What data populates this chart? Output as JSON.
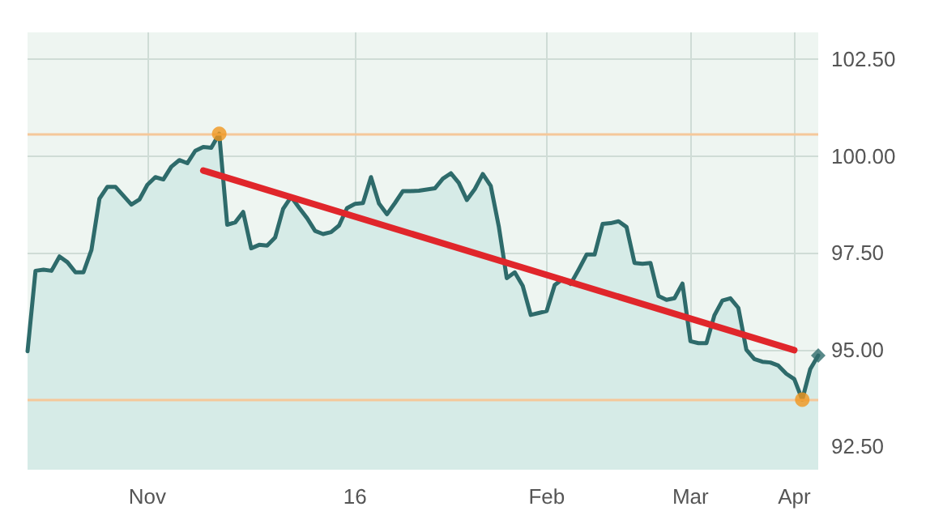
{
  "chart_data": {
    "type": "area",
    "ylim": [
      91.9,
      103.2
    ],
    "categories": [
      null,
      null,
      null,
      null,
      null,
      null,
      null,
      null,
      null,
      null,
      null,
      null,
      null,
      null,
      null,
      "Nov",
      null,
      null,
      null,
      null,
      null,
      null,
      null,
      null,
      null,
      null,
      null,
      null,
      null,
      null,
      null,
      null,
      null,
      null,
      null,
      null,
      null,
      null,
      null,
      null,
      null,
      "16",
      null,
      null,
      null,
      null,
      null,
      null,
      null,
      null,
      null,
      null,
      null,
      null,
      null,
      null,
      null,
      null,
      null,
      null,
      null,
      null,
      null,
      null,
      null,
      "Feb",
      null,
      null,
      null,
      null,
      null,
      null,
      null,
      null,
      null,
      null,
      null,
      null,
      null,
      null,
      null,
      null,
      null,
      "Mar",
      null,
      null,
      null,
      null,
      null,
      null,
      null,
      null,
      null,
      null,
      null,
      null,
      "Apr",
      null,
      null,
      null
    ],
    "yticks": [
      {
        "value": 92.5,
        "label": "92.50"
      },
      {
        "value": 95,
        "label": "95.00"
      },
      {
        "value": 97.5,
        "label": "97.50"
      },
      {
        "value": 100,
        "label": "100.00"
      },
      {
        "value": 102.5,
        "label": "102.50"
      }
    ],
    "grid": true,
    "marker": "none",
    "ref_lines": [
      {
        "axis": "y",
        "value": 100.58,
        "label": null,
        "color": "#f5c89a"
      },
      {
        "axis": "y",
        "value": 93.71,
        "label": null,
        "color": "#f5c89a"
      }
    ],
    "series": [
      {
        "color": "#2e6b6b",
        "values": [
          94.96,
          97.04,
          97.07,
          97.04,
          97.41,
          97.26,
          97.0,
          97.0,
          97.58,
          98.9,
          99.21,
          99.21,
          98.98,
          98.75,
          98.88,
          99.26,
          99.46,
          99.4,
          99.73,
          99.9,
          99.82,
          100.14,
          100.24,
          100.22,
          100.58,
          98.23,
          98.29,
          98.56,
          97.62,
          97.71,
          97.69,
          97.9,
          98.64,
          98.95,
          98.67,
          98.4,
          98.07,
          97.99,
          98.04,
          98.21,
          98.66,
          98.77,
          98.79,
          99.46,
          98.78,
          98.5,
          98.79,
          99.1,
          99.1,
          99.11,
          99.14,
          99.17,
          99.42,
          99.56,
          99.31,
          98.87,
          99.15,
          99.54,
          99.23,
          98.19,
          96.85,
          97.0,
          96.65,
          95.9,
          95.95,
          96.0,
          96.67,
          96.83,
          96.7,
          97.07,
          97.46,
          97.46,
          98.25,
          98.27,
          98.32,
          98.17,
          97.24,
          97.22,
          97.24,
          96.39,
          96.29,
          96.33,
          96.71,
          95.22,
          95.17,
          95.17,
          95.89,
          96.27,
          96.33,
          96.08,
          95.0,
          94.76,
          94.69,
          94.67,
          94.59,
          94.38,
          94.24,
          93.71,
          94.5,
          94.85
        ]
      },
      {
        "type": "line",
        "color": "#e0262b",
        "values": [
          null,
          null,
          null,
          null,
          null,
          null,
          null,
          null,
          null,
          null,
          null,
          null,
          null,
          null,
          null,
          null,
          null,
          null,
          null,
          null,
          null,
          null,
          99.63,
          null,
          null,
          null,
          null,
          null,
          null,
          null,
          null,
          null,
          null,
          null,
          null,
          null,
          null,
          null,
          null,
          null,
          null,
          null,
          null,
          null,
          null,
          null,
          null,
          null,
          null,
          null,
          null,
          null,
          null,
          null,
          null,
          null,
          null,
          null,
          null,
          null,
          null,
          null,
          null,
          null,
          null,
          null,
          null,
          null,
          null,
          null,
          null,
          null,
          null,
          null,
          null,
          null,
          null,
          null,
          null,
          null,
          null,
          null,
          null,
          null,
          null,
          null,
          null,
          null,
          null,
          null,
          null,
          null,
          null,
          null,
          null,
          null,
          94.99,
          null,
          null,
          null
        ]
      },
      {
        "type": "scatter",
        "color": "#f0961e",
        "marker": "circle",
        "values": [
          null,
          null,
          null,
          null,
          null,
          null,
          null,
          null,
          null,
          null,
          null,
          null,
          null,
          null,
          null,
          null,
          null,
          null,
          null,
          null,
          null,
          null,
          null,
          null,
          100.58,
          null,
          null,
          null,
          null,
          null,
          null,
          null,
          null,
          null,
          null,
          null,
          null,
          null,
          null,
          null,
          null,
          null,
          null,
          null,
          null,
          null,
          null,
          null,
          null,
          null,
          null,
          null,
          null,
          null,
          null,
          null,
          null,
          null,
          null,
          null,
          null,
          null,
          null,
          null,
          null,
          null,
          null,
          null,
          null,
          null,
          null,
          null,
          null,
          null,
          null,
          null,
          null,
          null,
          null,
          null,
          null,
          null,
          null,
          null,
          null,
          null,
          null,
          null,
          null,
          null,
          null,
          null,
          null,
          null,
          null,
          null,
          null,
          93.71,
          null,
          null
        ]
      },
      {
        "type": "scatter",
        "color": "#2e6b6b",
        "marker": "diamond",
        "values": [
          null,
          null,
          null,
          null,
          null,
          null,
          null,
          null,
          null,
          null,
          null,
          null,
          null,
          null,
          null,
          null,
          null,
          null,
          null,
          null,
          null,
          null,
          null,
          null,
          null,
          null,
          null,
          null,
          null,
          null,
          null,
          null,
          null,
          null,
          null,
          null,
          null,
          null,
          null,
          null,
          null,
          null,
          null,
          null,
          null,
          null,
          null,
          null,
          null,
          null,
          null,
          null,
          null,
          null,
          null,
          null,
          null,
          null,
          null,
          null,
          null,
          null,
          null,
          null,
          null,
          null,
          null,
          null,
          null,
          null,
          null,
          null,
          null,
          null,
          null,
          null,
          null,
          null,
          null,
          null,
          null,
          null,
          null,
          null,
          null,
          null,
          null,
          null,
          null,
          null,
          null,
          null,
          null,
          null,
          null,
          null,
          null,
          null,
          null,
          94.85
        ]
      }
    ]
  }
}
